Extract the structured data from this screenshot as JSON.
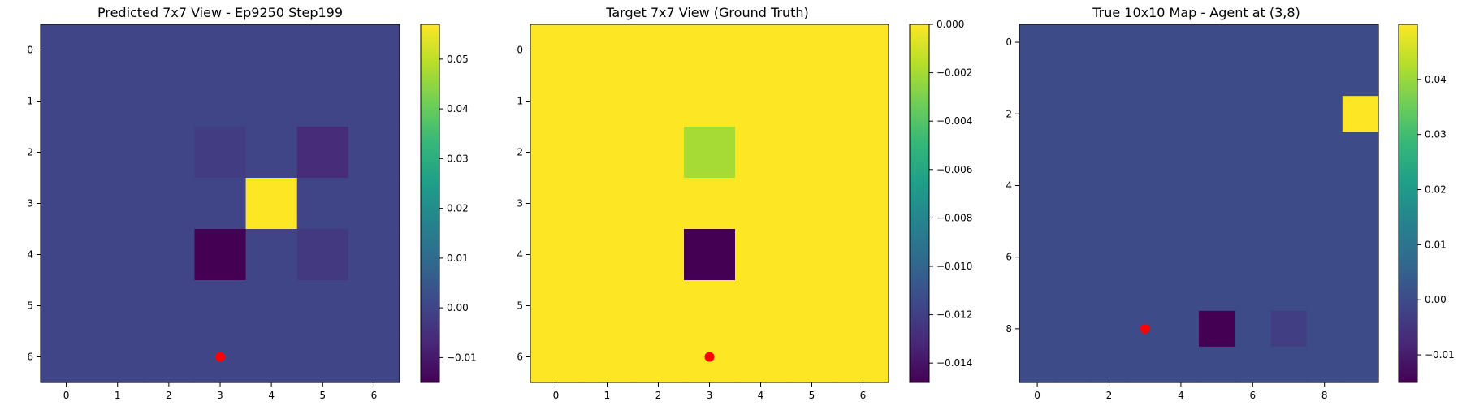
{
  "figure": {
    "background": "#ffffff"
  },
  "colormap_stops": [
    "#440154",
    "#482878",
    "#3e4989",
    "#31688e",
    "#26828e",
    "#1f9e89",
    "#35b779",
    "#6ece58",
    "#b5de2b",
    "#fde725"
  ],
  "chart_data": [
    {
      "type": "heatmap",
      "title": "Predicted 7x7 View - Ep9250 Step199",
      "rows": 7,
      "cols": 7,
      "xlabel": "",
      "ylabel": "",
      "x_ticks": [
        0,
        1,
        2,
        3,
        4,
        5,
        6
      ],
      "y_ticks": [
        0,
        1,
        2,
        3,
        4,
        5,
        6
      ],
      "vmin": -0.015,
      "vmax": 0.057,
      "colorbar_ticks": [
        -0.01,
        0.0,
        0.01,
        0.02,
        0.03,
        0.04,
        0.05
      ],
      "colorbar_tick_labels": [
        "−0.01",
        "0.00",
        "0.01",
        "0.02",
        "0.03",
        "0.04",
        "0.05"
      ],
      "default_value": 0.0,
      "cells": [
        {
          "row": 2,
          "col": 3,
          "value": -0.002
        },
        {
          "row": 2,
          "col": 5,
          "value": -0.006
        },
        {
          "row": 3,
          "col": 4,
          "value": 0.057
        },
        {
          "row": 4,
          "col": 3,
          "value": -0.015
        },
        {
          "row": 4,
          "col": 5,
          "value": -0.003
        }
      ],
      "marker": {
        "row": 6,
        "col": 3,
        "color": "#ff0000"
      }
    },
    {
      "type": "heatmap",
      "title": "Target 7x7 View (Ground Truth)",
      "rows": 7,
      "cols": 7,
      "xlabel": "",
      "ylabel": "",
      "x_ticks": [
        0,
        1,
        2,
        3,
        4,
        5,
        6
      ],
      "y_ticks": [
        0,
        1,
        2,
        3,
        4,
        5,
        6
      ],
      "vmin": -0.0148,
      "vmax": 0.0,
      "colorbar_ticks": [
        0.0,
        -0.002,
        -0.004,
        -0.006,
        -0.008,
        -0.01,
        -0.012,
        -0.014
      ],
      "colorbar_tick_labels": [
        "0.000",
        "−0.002",
        "−0.004",
        "−0.006",
        "−0.008",
        "−0.010",
        "−0.012",
        "−0.014"
      ],
      "default_value": 0.0,
      "cells": [
        {
          "row": 2,
          "col": 3,
          "value": -0.002
        },
        {
          "row": 4,
          "col": 3,
          "value": -0.0148
        }
      ],
      "marker": {
        "row": 6,
        "col": 3,
        "color": "#ff0000"
      }
    },
    {
      "type": "heatmap",
      "title": "True 10x10 Map - Agent at (3,8)",
      "rows": 10,
      "cols": 10,
      "xlabel": "",
      "ylabel": "",
      "x_ticks": [
        0,
        2,
        4,
        6,
        8
      ],
      "y_ticks": [
        0,
        2,
        4,
        6,
        8
      ],
      "vmin": -0.015,
      "vmax": 0.05,
      "colorbar_ticks": [
        -0.01,
        0.0,
        0.01,
        0.02,
        0.03,
        0.04
      ],
      "colorbar_tick_labels": [
        "−0.01",
        "0.00",
        "0.01",
        "0.02",
        "0.03",
        "0.04"
      ],
      "default_value": 0.0,
      "cells": [
        {
          "row": 2,
          "col": 9,
          "value": 0.05
        },
        {
          "row": 8,
          "col": 5,
          "value": -0.015
        },
        {
          "row": 8,
          "col": 7,
          "value": -0.003
        }
      ],
      "marker": {
        "row": 8,
        "col": 3,
        "color": "#ff0000"
      }
    }
  ]
}
